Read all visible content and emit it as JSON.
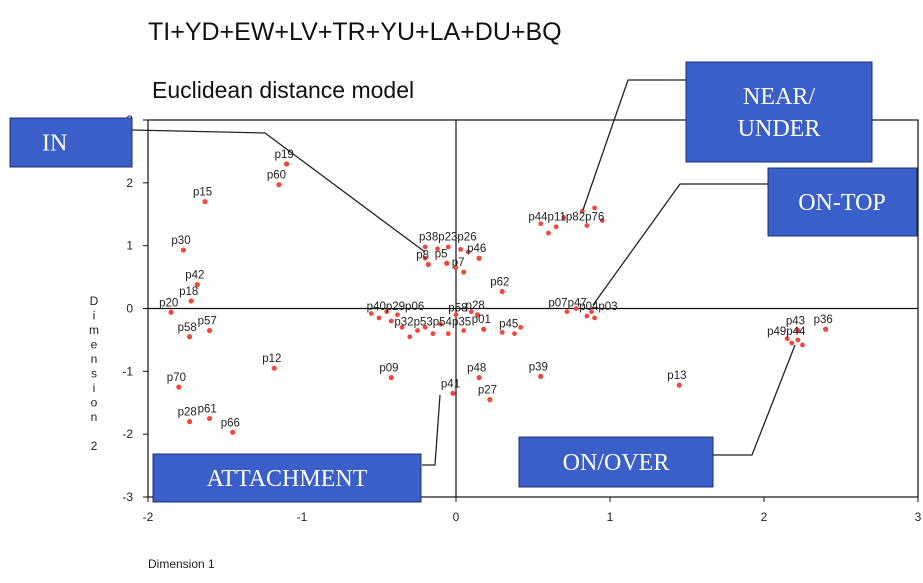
{
  "chart_data": {
    "type": "scatter",
    "title": "TI+YD+EW+LV+TR+YU+LA+DU+BQ",
    "subtitle": "Euclidean distance model",
    "xlabel": "Dimension 1",
    "ylabel": "Dimension 2",
    "xlim": [
      -2,
      3
    ],
    "ylim": [
      -3,
      3
    ],
    "xticks": [
      -2,
      -1,
      0,
      1,
      2,
      3
    ],
    "yticks": [
      -3,
      -2,
      -1,
      0,
      1,
      2,
      3
    ],
    "point_color": "#f0483c",
    "box_color": "#3a5fc8",
    "points": [
      {
        "label": "p19",
        "x": -1.1,
        "y": 2.3
      },
      {
        "label": "p60",
        "x": -1.15,
        "y": 1.97
      },
      {
        "label": "p15",
        "x": -1.63,
        "y": 1.7
      },
      {
        "label": "p30",
        "x": -1.77,
        "y": 0.93
      },
      {
        "label": "p42",
        "x": -1.68,
        "y": 0.38
      },
      {
        "label": "p18",
        "x": -1.72,
        "y": 0.12
      },
      {
        "label": "p20",
        "x": -1.85,
        "y": -0.06
      },
      {
        "label": "p58",
        "x": -1.73,
        "y": -0.45
      },
      {
        "label": "p57",
        "x": -1.6,
        "y": -0.35
      },
      {
        "label": "p12",
        "x": -1.18,
        "y": -0.95
      },
      {
        "label": "p70",
        "x": -1.8,
        "y": -1.25
      },
      {
        "label": "p28",
        "x": -1.73,
        "y": -1.8
      },
      {
        "label": "p61",
        "x": -1.6,
        "y": -1.75
      },
      {
        "label": "p66",
        "x": -1.45,
        "y": -1.97
      },
      {
        "label": "p8",
        "x": -0.18,
        "y": 0.7
      },
      {
        "label": "p5",
        "x": -0.06,
        "y": 0.72
      },
      {
        "label": "p7",
        "x": 0.05,
        "y": 0.58
      },
      {
        "label": "p46",
        "x": 0.15,
        "y": 0.8
      },
      {
        "label": "p62",
        "x": 0.3,
        "y": 0.27
      },
      {
        "label": "p09",
        "x": -0.42,
        "y": -1.1
      },
      {
        "label": "p41",
        "x": -0.02,
        "y": -1.35
      },
      {
        "label": "p48",
        "x": 0.15,
        "y": -1.1
      },
      {
        "label": "p27",
        "x": 0.22,
        "y": -1.45
      },
      {
        "label": "p39",
        "x": 0.55,
        "y": -1.08
      },
      {
        "label": "p28",
        "x": 0.14,
        "y": -0.1
      },
      {
        "label": "p01",
        "x": 0.18,
        "y": -0.33
      },
      {
        "label": "p13",
        "x": 1.45,
        "y": -1.22
      },
      {
        "label": "p43",
        "x": 2.22,
        "y": -0.35
      },
      {
        "label": "p36",
        "x": 2.4,
        "y": -0.33
      }
    ],
    "extra_points": [
      {
        "x": -0.2,
        "y": 0.98
      },
      {
        "x": -0.12,
        "y": 0.95
      },
      {
        "x": -0.05,
        "y": 0.98
      },
      {
        "x": 0.03,
        "y": 0.94
      },
      {
        "x": -0.2,
        "y": 0.8
      },
      {
        "x": 0.0,
        "y": 0.65
      },
      {
        "x": 0.08,
        "y": 0.9
      },
      {
        "x": 0.55,
        "y": 1.35
      },
      {
        "x": 0.6,
        "y": 1.2
      },
      {
        "x": 0.65,
        "y": 1.3
      },
      {
        "x": 0.7,
        "y": 1.45
      },
      {
        "x": 0.82,
        "y": 1.55
      },
      {
        "x": 0.85,
        "y": 1.32
      },
      {
        "x": 0.9,
        "y": 1.6
      },
      {
        "x": 0.95,
        "y": 1.4
      },
      {
        "x": -0.55,
        "y": -0.08
      },
      {
        "x": -0.5,
        "y": -0.15
      },
      {
        "x": -0.45,
        "y": -0.05
      },
      {
        "x": -0.42,
        "y": -0.2
      },
      {
        "x": -0.38,
        "y": -0.1
      },
      {
        "x": -0.35,
        "y": -0.3
      },
      {
        "x": -0.3,
        "y": -0.45
      },
      {
        "x": -0.25,
        "y": -0.35
      },
      {
        "x": -0.2,
        "y": -0.3
      },
      {
        "x": -0.15,
        "y": -0.4
      },
      {
        "x": -0.1,
        "y": -0.25
      },
      {
        "x": -0.05,
        "y": -0.4
      },
      {
        "x": 0.0,
        "y": -0.1
      },
      {
        "x": 0.05,
        "y": -0.35
      },
      {
        "x": 0.1,
        "y": -0.05
      },
      {
        "x": 0.3,
        "y": -0.38
      },
      {
        "x": 0.38,
        "y": -0.4
      },
      {
        "x": 0.42,
        "y": -0.3
      },
      {
        "x": 0.72,
        "y": -0.05
      },
      {
        "x": 0.78,
        "y": 0.0
      },
      {
        "x": 0.85,
        "y": -0.12
      },
      {
        "x": 0.88,
        "y": -0.05
      },
      {
        "x": 0.9,
        "y": -0.15
      },
      {
        "x": 2.15,
        "y": -0.48
      },
      {
        "x": 2.18,
        "y": -0.55
      },
      {
        "x": 2.22,
        "y": -0.5
      },
      {
        "x": 2.25,
        "y": -0.58
      }
    ],
    "clusters": [
      {
        "labels": "p38p23p26",
        "x": -0.24,
        "y": 1.08
      },
      {
        "labels": "p44p11p82p76",
        "x": 0.47,
        "y": 1.4
      },
      {
        "labels": "p40p29p06",
        "x": -0.58,
        "y": -0.02
      },
      {
        "labels": "p32p53p54p35",
        "x": -0.4,
        "y": -0.27
      },
      {
        "labels": "p58",
        "x": -0.05,
        "y": -0.05
      },
      {
        "labels": "p45",
        "x": 0.28,
        "y": -0.3
      },
      {
        "labels": "p07p47",
        "x": 0.6,
        "y": 0.03
      },
      {
        "labels": "p04p03",
        "x": 0.8,
        "y": -0.02
      },
      {
        "labels": "p49p44",
        "x": 2.02,
        "y": -0.42
      }
    ],
    "annotations": [
      {
        "text": "IN",
        "lines": [
          "IN"
        ]
      },
      {
        "text": "NEAR/ UNDER",
        "lines": [
          "NEAR/",
          "UNDER"
        ]
      },
      {
        "text": "ON-TOP",
        "lines": [
          "ON-TOP"
        ]
      },
      {
        "text": "ATTACHMENT",
        "lines": [
          "ATTACHMENT"
        ]
      },
      {
        "text": "ON/OVER",
        "lines": [
          "ON/OVER"
        ]
      }
    ]
  }
}
